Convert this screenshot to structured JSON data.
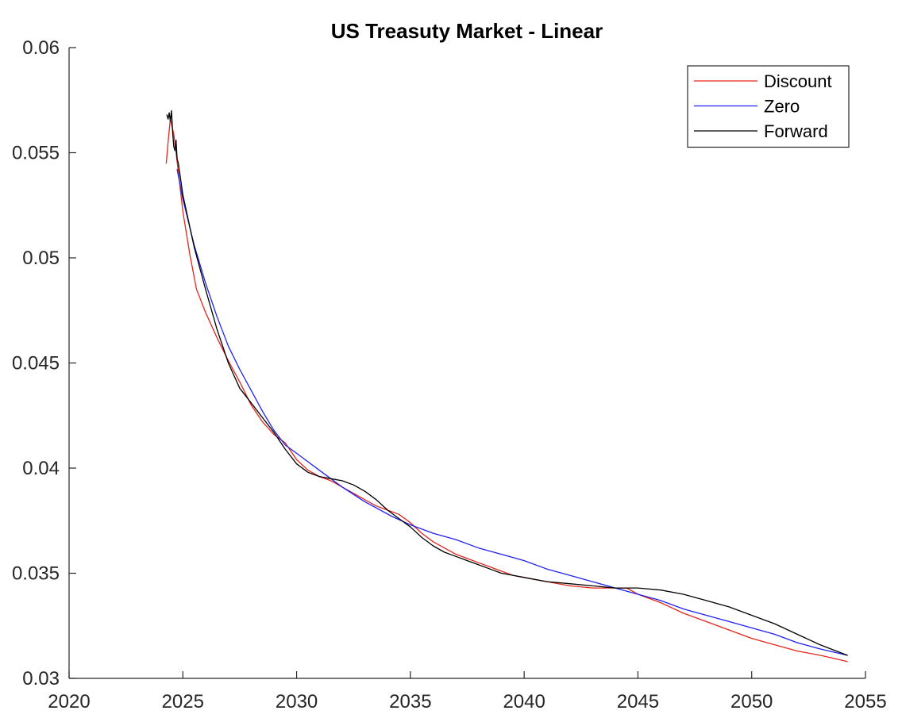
{
  "chart_data": {
    "type": "line",
    "title": "US Treasuty Market - Linear",
    "xlabel": "",
    "ylabel": "",
    "xlim": [
      2020,
      2055
    ],
    "ylim": [
      0.03,
      0.06
    ],
    "xticks": [
      2020,
      2025,
      2030,
      2035,
      2040,
      2045,
      2050,
      2055
    ],
    "xtick_labels": [
      "2020",
      "2025",
      "2030",
      "2035",
      "2040",
      "2045",
      "2050",
      "2055"
    ],
    "yticks": [
      0.03,
      0.035,
      0.04,
      0.045,
      0.05,
      0.055,
      0.06
    ],
    "ytick_labels": [
      "0.03",
      "0.035",
      "0.04",
      "0.045",
      "0.05",
      "0.055",
      "0.06"
    ],
    "grid": false,
    "legend_position": "top-right",
    "series": [
      {
        "name": "Discount",
        "color": "#e3261a",
        "x": [
          2024.27,
          2024.35,
          2024.45,
          2024.6,
          2024.8,
          2025.0,
          2025.3,
          2025.6,
          2026.0,
          2026.5,
          2027.0,
          2027.5,
          2028.0,
          2028.5,
          2029.0,
          2029.5,
          2030.0,
          2030.5,
          2031.0,
          2031.5,
          2032.0,
          2032.5,
          2033.0,
          2033.5,
          2034.0,
          2034.5,
          2035.0,
          2035.5,
          2036.0,
          2036.5,
          2037.0,
          2037.5,
          2038.0,
          2038.5,
          2039.0,
          2039.5,
          2040.0,
          2041.0,
          2042.0,
          2043.0,
          2044.0,
          2044.5,
          2045.0,
          2046.0,
          2047.0,
          2048.0,
          2049.0,
          2050.0,
          2051.0,
          2052.0,
          2053.0,
          2054.2
        ],
        "y": [
          0.0545,
          0.0555,
          0.0566,
          0.0559,
          0.0541,
          0.0522,
          0.0502,
          0.0485,
          0.0474,
          0.0462,
          0.0451,
          0.0441,
          0.043,
          0.0422,
          0.0416,
          0.0412,
          0.0404,
          0.0399,
          0.0396,
          0.0394,
          0.0391,
          0.0388,
          0.0385,
          0.0382,
          0.038,
          0.0378,
          0.0374,
          0.0369,
          0.0365,
          0.0362,
          0.0359,
          0.0357,
          0.0355,
          0.0353,
          0.0351,
          0.0349,
          0.0348,
          0.0346,
          0.0344,
          0.0343,
          0.0343,
          0.0343,
          0.034,
          0.0336,
          0.0331,
          0.0327,
          0.0323,
          0.0319,
          0.0316,
          0.0313,
          0.0311,
          0.0308
        ]
      },
      {
        "name": "Zero",
        "color": "#1f20f2",
        "x": [
          2024.75,
          2025.0,
          2025.5,
          2026.0,
          2026.5,
          2027.0,
          2027.5,
          2028.0,
          2028.5,
          2029.0,
          2029.5,
          2030.0,
          2030.5,
          2031.0,
          2032.0,
          2033.0,
          2034.2,
          2035.0,
          2036.0,
          2037.0,
          2038.0,
          2039.0,
          2040.0,
          2041.0,
          2042.0,
          2043.0,
          2044.0,
          2045.0,
          2046.0,
          2047.0,
          2048.0,
          2049.0,
          2050.0,
          2051.0,
          2052.0,
          2053.0,
          2054.2
        ],
        "y": [
          0.0542,
          0.0528,
          0.0506,
          0.0488,
          0.0472,
          0.0458,
          0.0447,
          0.0437,
          0.0427,
          0.0418,
          0.0411,
          0.0407,
          0.0403,
          0.0399,
          0.0391,
          0.0384,
          0.0377,
          0.0373,
          0.0369,
          0.0366,
          0.0362,
          0.0359,
          0.0356,
          0.0352,
          0.0349,
          0.0346,
          0.0343,
          0.034,
          0.0337,
          0.0333,
          0.033,
          0.0327,
          0.0324,
          0.0321,
          0.0317,
          0.0314,
          0.0311
        ]
      },
      {
        "name": "Forward",
        "color": "#000000",
        "x": [
          2024.3,
          2024.35,
          2024.4,
          2024.45,
          2024.5,
          2024.55,
          2024.6,
          2024.65,
          2024.7,
          2024.75,
          2024.8,
          2025.0,
          2025.5,
          2026.0,
          2026.5,
          2027.0,
          2027.5,
          2028.0,
          2028.5,
          2029.0,
          2029.5,
          2030.0,
          2030.5,
          2031.0,
          2031.5,
          2032.0,
          2032.5,
          2033.0,
          2033.5,
          2034.0,
          2034.5,
          2035.0,
          2035.5,
          2036.0,
          2036.5,
          2037.0,
          2037.5,
          2038.0,
          2038.5,
          2039.0,
          2039.5,
          2040.0,
          2041.0,
          2042.0,
          2043.0,
          2044.0,
          2045.0,
          2046.0,
          2047.0,
          2048.0,
          2049.0,
          2050.0,
          2051.0,
          2052.0,
          2053.0,
          2054.2
        ],
        "y": [
          0.0568,
          0.0566,
          0.0569,
          0.0565,
          0.057,
          0.056,
          0.0553,
          0.0551,
          0.0556,
          0.0547,
          0.0545,
          0.053,
          0.0505,
          0.0485,
          0.0466,
          0.045,
          0.0438,
          0.0431,
          0.0424,
          0.0417,
          0.0409,
          0.0402,
          0.0398,
          0.0396,
          0.0395,
          0.0394,
          0.0392,
          0.0389,
          0.0385,
          0.038,
          0.0376,
          0.0372,
          0.0367,
          0.0363,
          0.036,
          0.0358,
          0.0356,
          0.0354,
          0.0352,
          0.035,
          0.0349,
          0.0348,
          0.0346,
          0.0345,
          0.0344,
          0.0343,
          0.0343,
          0.0342,
          0.034,
          0.0337,
          0.0334,
          0.033,
          0.0326,
          0.0321,
          0.0316,
          0.0311
        ]
      }
    ]
  }
}
